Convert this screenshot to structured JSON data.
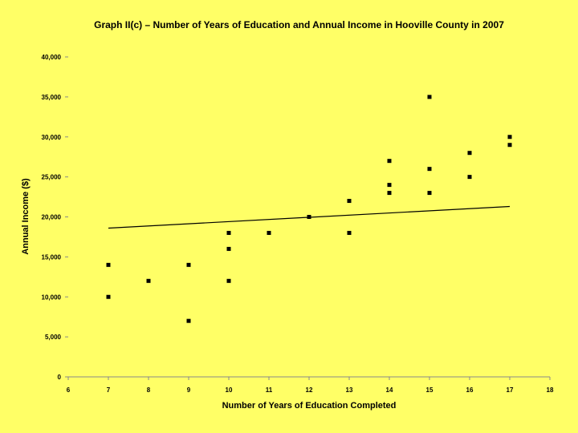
{
  "chart_data": {
    "type": "scatter",
    "title": "Graph II(c) – Number of Years of Education and Annual Income in Hooville County in 2007",
    "xlabel": "Number of Years of Education Completed",
    "ylabel": "Annual Income ($)",
    "xlim": [
      6,
      18
    ],
    "ylim": [
      0,
      40000
    ],
    "x_ticks": [
      "6",
      "7",
      "8",
      "9",
      "10",
      "11",
      "12",
      "13",
      "14",
      "15",
      "16",
      "17",
      "18"
    ],
    "y_ticks": [
      "0",
      "5,000",
      "10,000",
      "15,000",
      "20,000",
      "25,000",
      "30,000",
      "35,000",
      "40,000"
    ],
    "grid": false,
    "points": [
      {
        "x": 7,
        "y": 14000
      },
      {
        "x": 7,
        "y": 10000
      },
      {
        "x": 8,
        "y": 12000
      },
      {
        "x": 9,
        "y": 14000
      },
      {
        "x": 9,
        "y": 7000
      },
      {
        "x": 10,
        "y": 18000
      },
      {
        "x": 10,
        "y": 16000
      },
      {
        "x": 10,
        "y": 12000
      },
      {
        "x": 11,
        "y": 18000
      },
      {
        "x": 12,
        "y": 20000
      },
      {
        "x": 13,
        "y": 22000
      },
      {
        "x": 13,
        "y": 18000
      },
      {
        "x": 14,
        "y": 27000
      },
      {
        "x": 14,
        "y": 24000
      },
      {
        "x": 14,
        "y": 23000
      },
      {
        "x": 15,
        "y": 35000
      },
      {
        "x": 15,
        "y": 26000
      },
      {
        "x": 15,
        "y": 23000
      },
      {
        "x": 16,
        "y": 28000
      },
      {
        "x": 16,
        "y": 25000
      },
      {
        "x": 17,
        "y": 30000
      },
      {
        "x": 17,
        "y": 29000
      }
    ],
    "trendline": {
      "x": [
        7,
        17
      ],
      "y": [
        18600,
        21300
      ]
    },
    "colors": {
      "background": "#ffff66",
      "marker": "#000000",
      "line": "#000000"
    }
  }
}
